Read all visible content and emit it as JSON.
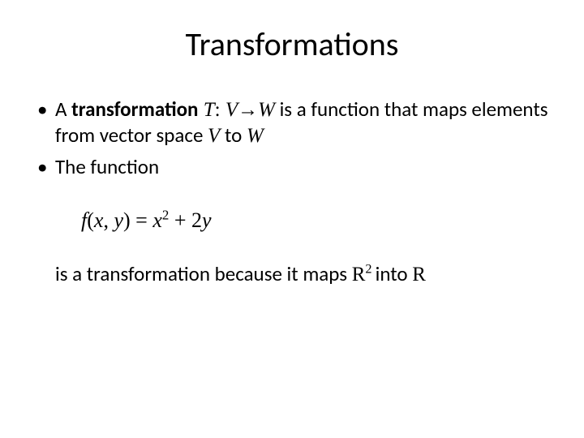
{
  "slide": {
    "title": "Transformations",
    "colors": {
      "background": "#ffffff",
      "text": "#000000"
    },
    "typography": {
      "title_fontsize": 40,
      "body_fontsize": 25,
      "equation_fontsize": 26,
      "body_font": "Calibri",
      "math_font": "Times New Roman"
    },
    "bullet1": {
      "lead": "A ",
      "bold": "transformation",
      "t_sym": " T",
      "colon": ": ",
      "v_sym": "V",
      "arrow": "→",
      "w_sym": "W",
      "mid": " is a function that maps elements from vector space ",
      "v2": "V",
      "to": " to ",
      "w2": "W"
    },
    "bullet2": {
      "text": "The function"
    },
    "equation": {
      "f": "f",
      "open": "(",
      "x": "x",
      "comma": ", ",
      "y": "y",
      "close": ") = ",
      "x2": "x",
      "sq": "2",
      "plus": " + 2",
      "y2": "y"
    },
    "closing": {
      "pre": "is a transformation because it maps ",
      "R1": "R",
      "exp": "2 ",
      "into": "into ",
      "R2": "R"
    }
  }
}
